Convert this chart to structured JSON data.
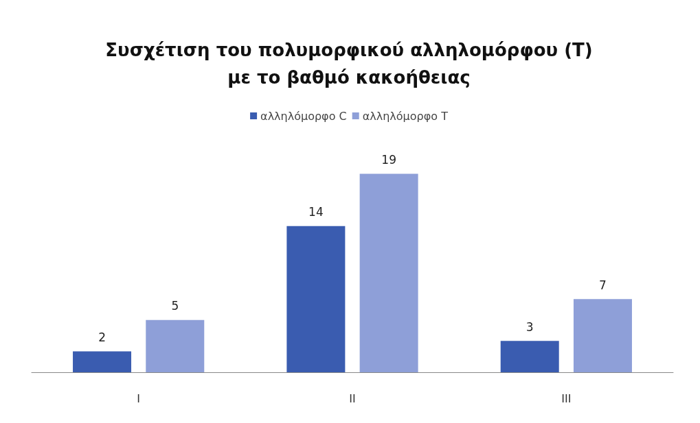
{
  "chart_data": {
    "type": "bar",
    "title": "Συσχέτιση του πολυμορφικού αλληλομόρφου (T)\nμε το βαθμό κακοήθειας",
    "categories": [
      "I",
      "II",
      "III"
    ],
    "series": [
      {
        "name": "αλληλόμορφο C",
        "color": "#3a5cb0",
        "values": [
          2,
          14,
          3
        ]
      },
      {
        "name": "αλληλόμορφο T",
        "color": "#8e9fd8",
        "values": [
          5,
          19,
          7
        ]
      }
    ],
    "data_labels": true,
    "legend": "top",
    "grid": false
  }
}
